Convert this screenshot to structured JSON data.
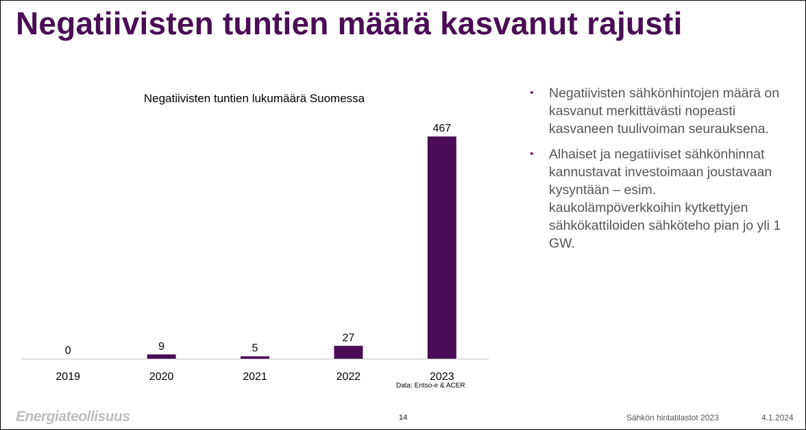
{
  "slide": {
    "title": "Negatiivisten tuntien määrä kasvanut rajusti",
    "source_note": "Data: Entso-e & ACER",
    "bullets": [
      "Negatiivisten sähkönhintojen määrä on kasvanut merkittävästi nopeasti kasvaneen tuulivoiman seurauksena.",
      "Alhaiset ja negatiiviset sähkönhinnat kannustavat investoimaan joustavaan kysyntään – esim. kaukolämpöverkkoihin kytkettyjen sähkökattiloiden sähköteho pian jo yli 1 GW."
    ],
    "bullet_symbol": "•"
  },
  "footer": {
    "logo": "Energiateollisuus",
    "page_number": "14",
    "presentation_title": "Sähkön hintatilastot 2023",
    "date": "4.1.2024"
  },
  "colors": {
    "title": "#4a0d55",
    "bar": "#4a0d55",
    "bullet_text": "#555555",
    "bullet_dot": "#7a2a6e",
    "logo": "#bdbdbd"
  },
  "chart_data": {
    "type": "bar",
    "title": "Negatiivisten tuntien lukumäärä Suomessa",
    "categories": [
      "2019",
      "2020",
      "2021",
      "2022",
      "2023"
    ],
    "values": [
      0,
      9,
      5,
      27,
      467
    ],
    "data_labels": [
      "0",
      "9",
      "5",
      "27",
      "467"
    ],
    "xlabel": "",
    "ylabel": "",
    "ylim": [
      0,
      467
    ],
    "grid": false,
    "legend": "none"
  }
}
